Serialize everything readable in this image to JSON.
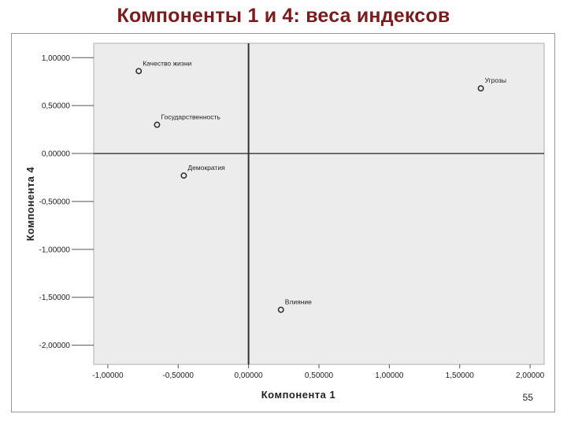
{
  "slide": {
    "title": "Компоненты 1 и 4: веса индексов",
    "page_number": "55"
  },
  "colors": {
    "title": "#7a1c1c",
    "plot_background": "#ececec",
    "reference_lines": "#333333",
    "markers": "#333333"
  },
  "chart_data": {
    "type": "scatter",
    "title": "",
    "xlabel": "Компонента 1",
    "ylabel": "Компонента 4",
    "xlim": [
      -1.1,
      2.1
    ],
    "ylim": [
      -2.2,
      1.15
    ],
    "x_ticks": [
      -1.0,
      -0.5,
      0.0,
      0.5,
      1.0,
      1.5,
      2.0
    ],
    "x_tick_labels": [
      "-1,00000",
      "-0,50000",
      "0,00000",
      "0,50000",
      "1,00000",
      "1,50000",
      "2,00000"
    ],
    "y_ticks": [
      1.0,
      0.5,
      0.0,
      -0.5,
      -1.0,
      -1.5,
      -2.0
    ],
    "y_tick_labels": [
      "1,00000",
      "0,50000",
      "0,00000",
      "-0,50000",
      "-1,00000",
      "-1,50000",
      "-2,00000"
    ],
    "reference_lines": {
      "x": 0,
      "y": 0
    },
    "grid": false,
    "points": [
      {
        "label": "Качество жизни",
        "x": -0.78,
        "y": 0.86
      },
      {
        "label": "Угрозы",
        "x": 1.65,
        "y": 0.68
      },
      {
        "label": "Государственность",
        "x": -0.65,
        "y": 0.3
      },
      {
        "label": "Демократия",
        "x": -0.46,
        "y": -0.23
      },
      {
        "label": "Влияние",
        "x": 0.23,
        "y": -1.63
      }
    ]
  }
}
